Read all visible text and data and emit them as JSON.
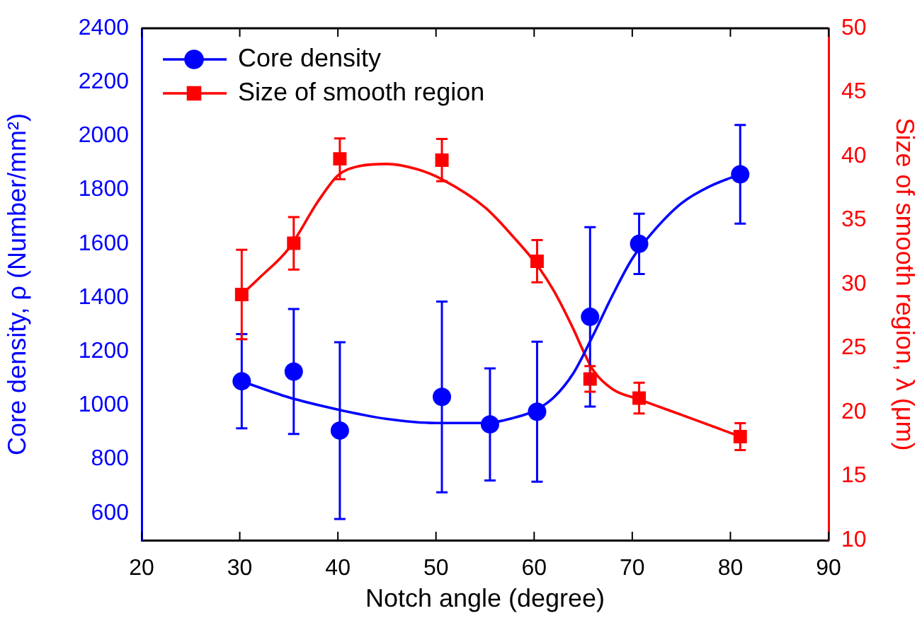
{
  "chart_data": {
    "type": "scatter",
    "xlabel": "Notch angle (degree)",
    "ylabel": "Core density, ρ (Number/mm²)",
    "y2label": "Size of smooth region, λ (μm)",
    "xlim": [
      20,
      90
    ],
    "xticks": [
      20,
      30,
      40,
      50,
      60,
      70,
      80,
      90
    ],
    "ylim": [
      500,
      2400
    ],
    "yticks": [
      600,
      800,
      1000,
      1200,
      1400,
      1600,
      1800,
      2000,
      2200,
      2400
    ],
    "y2lim": [
      10,
      50
    ],
    "y2ticks": [
      10,
      15,
      20,
      25,
      30,
      35,
      40,
      45,
      50
    ],
    "grid": false,
    "legend": "top left",
    "series": [
      {
        "name": "Core density",
        "type": "scatter",
        "marker": "circle",
        "color": "#0000ff",
        "x": [
          30.2,
          35.5,
          40.2,
          50.6,
          55.5,
          60.3,
          65.7,
          70.7,
          81.0
        ],
        "values": [
          1090,
          1126,
          907,
          1032,
          930,
          977,
          1329,
          1600,
          1858
        ],
        "errors": [
          175,
          232,
          328,
          354,
          208,
          260,
          333,
          112,
          183
        ]
      },
      {
        "name": "Size of smooth region",
        "type": "scatter",
        "marker": "square",
        "color": "#ff0000",
        "axis": "y2",
        "x": [
          30.2,
          35.5,
          40.2,
          50.6,
          60.3,
          65.7,
          70.7,
          81.0
        ],
        "values": [
          29.2,
          33.2,
          39.8,
          39.7,
          31.8,
          22.6,
          21.1,
          18.1
        ],
        "errors": [
          3.5,
          2.05,
          1.6,
          1.65,
          1.65,
          1,
          1.2,
          1.05
        ]
      },
      {
        "type": "line",
        "color": "#0000ff",
        "x": [
          30.2,
          35,
          40,
          45,
          50,
          55,
          58,
          60,
          62,
          64,
          66,
          68,
          70,
          72,
          75,
          78,
          81
        ],
        "values": [
          1090,
          1030,
          985,
          950,
          935,
          935,
          955,
          980,
          1030,
          1120,
          1260,
          1410,
          1545,
          1640,
          1750,
          1815,
          1858
        ]
      },
      {
        "type": "line",
        "color": "#ff0000",
        "axis": "y2",
        "x": [
          30.2,
          32,
          35,
          38,
          40,
          42,
          45,
          48,
          50.6,
          55,
          58,
          60.3,
          62,
          64,
          65,
          66,
          68,
          70.7,
          75,
          81
        ],
        "values": [
          29.2,
          30.5,
          32.8,
          36.5,
          38.5,
          39.2,
          39.4,
          39.0,
          38.2,
          36,
          33.6,
          31.5,
          29.5,
          26.5,
          24.8,
          23.3,
          21.8,
          21.0,
          19.8,
          18.1
        ]
      }
    ]
  }
}
